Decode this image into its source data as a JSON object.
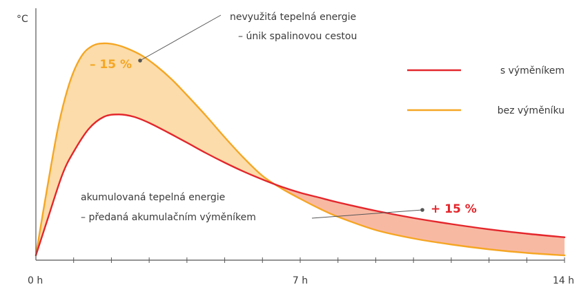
{
  "chart_data": {
    "type": "line",
    "ylabel": "°C",
    "xlim": [
      0,
      14
    ],
    "x_ticks": [
      {
        "value": 0,
        "label": "0 h"
      },
      {
        "value": 7,
        "label": "7 h"
      },
      {
        "value": 14,
        "label": "14 h"
      }
    ],
    "x_minor_tick_step": 1,
    "grid": false,
    "legend": "right",
    "colors": {
      "with_exchanger": "#e3262c",
      "without_exchanger": "#f5a623",
      "loss_fill": "#fbdcaa",
      "gain_fill": "#f8b9a3",
      "axis": "#555555",
      "pointer": "#555555"
    },
    "series": [
      {
        "name": "s výměníkem",
        "key": "with_exchanger",
        "x": [
          0,
          0.3,
          0.7,
          1.0,
          1.4,
          1.8,
          2.2,
          2.6,
          3.0,
          3.5,
          4.0,
          4.5,
          5.0,
          5.5,
          6.0,
          6.5,
          7.0,
          7.5,
          8.0,
          9.0,
          10.0,
          11.0,
          12.0,
          13.0,
          14.0
        ],
        "y": [
          2.0,
          16.5,
          35.5,
          45.0,
          54.5,
          59.5,
          60.5,
          59.5,
          57.0,
          53.0,
          48.8,
          44.5,
          40.5,
          36.8,
          33.5,
          30.5,
          28.0,
          26.0,
          24.0,
          20.5,
          17.5,
          15.0,
          12.8,
          11.0,
          9.5
        ]
      },
      {
        "name": "bez výměníku",
        "key": "without_exchanger",
        "x": [
          0,
          0.3,
          0.6,
          0.9,
          1.2,
          1.5,
          1.8,
          2.1,
          2.4,
          2.8,
          3.2,
          3.6,
          4.0,
          4.5,
          5.0,
          5.5,
          6.0,
          6.5,
          7.0,
          7.5,
          8.0,
          9.0,
          10.0,
          11.0,
          12.0,
          13.0,
          14.0
        ],
        "y": [
          2.0,
          30.0,
          56.0,
          74.0,
          84.5,
          89.0,
          90.0,
          89.5,
          88.0,
          85.0,
          80.5,
          75.0,
          68.5,
          60.0,
          51.0,
          42.5,
          35.0,
          29.8,
          25.5,
          21.5,
          18.0,
          12.5,
          9.0,
          6.5,
          4.5,
          3.0,
          2.0
        ]
      }
    ],
    "annotations": {
      "loss_lines": [
        "nevyužitá tepelná energie",
        "– únik spalinovou cestou"
      ],
      "loss_value": "– 15 %",
      "gain_lines": [
        "akumulovaná tepelná energie",
        "– předaná akumulačním výměníkem"
      ],
      "gain_value": "+ 15 %"
    }
  }
}
